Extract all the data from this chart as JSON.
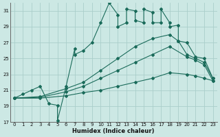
{
  "bg_color": "#cce8e4",
  "grid_color": "#aaceca",
  "line_color": "#1a6b5a",
  "xlabel": "Humidex (Indice chaleur)",
  "xlim": [
    -0.5,
    23.5
  ],
  "ylim": [
    17,
    32
  ],
  "yticks": [
    17,
    19,
    21,
    23,
    25,
    27,
    29,
    31
  ],
  "xticks": [
    0,
    1,
    2,
    3,
    4,
    5,
    6,
    7,
    8,
    9,
    10,
    11,
    12,
    13,
    14,
    15,
    16,
    17,
    18,
    19,
    20,
    21,
    22,
    23
  ],
  "lines": [
    {
      "x": [
        0,
        1,
        2,
        3,
        4,
        5,
        5,
        6,
        7,
        7,
        8,
        9,
        10,
        11,
        12,
        12,
        13,
        13,
        14,
        14,
        15,
        15,
        16,
        16,
        17,
        17,
        18,
        18,
        19,
        19,
        20,
        21,
        22,
        23
      ],
      "y": [
        20.0,
        20.5,
        21.0,
        21.5,
        19.3,
        19.1,
        17.2,
        21.5,
        26.2,
        25.5,
        26.0,
        27.0,
        29.5,
        32.0,
        30.5,
        29.0,
        29.5,
        31.2,
        31.0,
        29.8,
        29.5,
        31.2,
        30.8,
        29.5,
        29.5,
        31.2,
        29.5,
        29.0,
        29.2,
        27.2,
        27.0,
        25.2,
        25.0,
        22.5
      ]
    },
    {
      "x": [
        0,
        3,
        6,
        8,
        10,
        12,
        14,
        16,
        18,
        19,
        20,
        21,
        22,
        23
      ],
      "y": [
        20.0,
        20.2,
        21.2,
        22.0,
        23.5,
        25.0,
        26.5,
        27.5,
        28.0,
        27.2,
        25.5,
        25.0,
        24.5,
        22.5
      ]
    },
    {
      "x": [
        0,
        3,
        6,
        8,
        10,
        12,
        14,
        16,
        18,
        20,
        21,
        22,
        23
      ],
      "y": [
        20.0,
        20.1,
        20.8,
        21.5,
        22.5,
        23.5,
        24.5,
        25.5,
        26.5,
        25.2,
        24.8,
        24.2,
        22.2
      ]
    },
    {
      "x": [
        0,
        3,
        6,
        8,
        10,
        12,
        14,
        16,
        18,
        20,
        21,
        22,
        23
      ],
      "y": [
        20.0,
        20.0,
        20.3,
        20.7,
        21.0,
        21.5,
        22.0,
        22.5,
        23.2,
        23.0,
        22.8,
        22.5,
        22.2
      ]
    }
  ]
}
